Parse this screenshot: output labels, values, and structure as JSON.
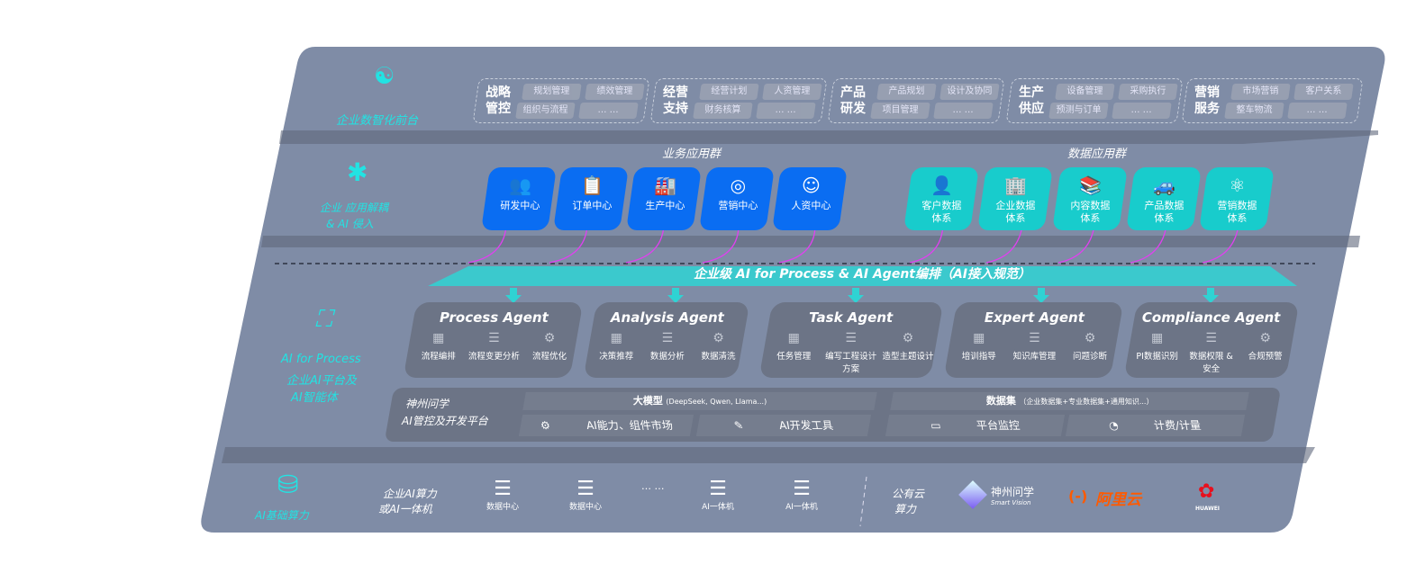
{
  "colors": {
    "panel": "#7f8ca6",
    "band_dark": "#5f687c",
    "agent_box": "#6c7486",
    "business_app": "#0a6df2",
    "data_app": "#18cccc",
    "label_cyan": "#22e3e3",
    "link_arrow": "#e040f0"
  },
  "layers": {
    "front": {
      "label": "企业数智化前台",
      "icon": "brain-icon"
    },
    "apps": {
      "label1": "企业 应用解耦",
      "label2": "& AI 侵入",
      "icon": "molecule-node-icon"
    },
    "ai": {
      "label1": "AI for Process",
      "label2": "企业AI平台及",
      "label3": "AI智能体",
      "icon": "face-scan-icon"
    },
    "infra": {
      "label": "AI基础算力",
      "icon": "database-icon"
    }
  },
  "front_groups": [
    {
      "title": "战略管控",
      "tags": [
        "规划管理",
        "绩效管理",
        "组织与流程",
        "… …"
      ]
    },
    {
      "title": "经营支持",
      "tags": [
        "经营计划",
        "人资管理",
        "财务核算",
        "… …"
      ]
    },
    {
      "title": "产品研发",
      "tags": [
        "产品规划",
        "设计及协同",
        "项目管理",
        "… …"
      ]
    },
    {
      "title": "生产供应",
      "tags": [
        "设备管理",
        "采购执行",
        "预测与订单",
        "… …"
      ]
    },
    {
      "title": "营销服务",
      "tags": [
        "市场营销",
        "客户关系",
        "整车物流",
        "… …"
      ]
    }
  ],
  "business_apps": {
    "title": "业务应用群",
    "items": [
      {
        "label": "研发中心",
        "icon": "team-icon"
      },
      {
        "label": "订单中心",
        "icon": "clipboard-icon"
      },
      {
        "label": "生产中心",
        "icon": "factory-icon"
      },
      {
        "label": "营销中心",
        "icon": "target-icon"
      },
      {
        "label": "人资中心",
        "icon": "person-icon"
      }
    ]
  },
  "data_apps": {
    "title": "数据应用群",
    "items": [
      {
        "label": "客户数据体系",
        "icon": "user-icon"
      },
      {
        "label": "企业数据体系",
        "icon": "building-icon"
      },
      {
        "label": "内容数据体系",
        "icon": "books-icon"
      },
      {
        "label": "产品数据体系",
        "icon": "car-icon"
      },
      {
        "label": "营销数据体系",
        "icon": "atom-icon"
      }
    ]
  },
  "orchestration_banner": "企业级 AI for Process & AI Agent编排（AI接入规范）",
  "agents": [
    {
      "name": "Process Agent",
      "items": [
        "流程编排",
        "流程变更分析",
        "流程优化"
      ]
    },
    {
      "name": "Analysis Agent",
      "items": [
        "决策推荐",
        "数据分析",
        "数据清洗"
      ]
    },
    {
      "name": "Task Agent",
      "items": [
        "任务管理",
        "编写工程设计方案",
        "造型主题设计"
      ]
    },
    {
      "name": "Expert Agent",
      "items": [
        "培训指导",
        "知识库管理",
        "问题诊断"
      ]
    },
    {
      "name": "Compliance Agent",
      "items": [
        "PI数据识别",
        "数据权限 & 安全",
        "合规预警"
      ]
    }
  ],
  "platform": {
    "title1": "神州问学",
    "title2": "AI管控及开发平台",
    "llm": "大模型",
    "llm_note": "(DeepSeek, Qwen, Llama...)",
    "dataset": "数据集",
    "dataset_note": "（企业数据集+专业数据集+通用知识...）",
    "tools": [
      {
        "label": "AI能力、组件市场",
        "icon": "component-market-icon"
      },
      {
        "label": "AI开发工具",
        "icon": "dev-tool-icon"
      },
      {
        "label": "平台监控",
        "icon": "monitor-icon"
      },
      {
        "label": "计费/计量",
        "icon": "gauge-icon"
      }
    ]
  },
  "infra": {
    "enterprise_label1": "企业AI算力",
    "enterprise_label2": "或AI一体机",
    "servers": [
      "数据中心",
      "数据中心",
      "AI一体机",
      "AI一体机"
    ],
    "ellipsis": "… …",
    "public_label1": "公有云",
    "public_label2": "算力",
    "providers": [
      {
        "name": "神州问学",
        "sub": "Smart Vision"
      },
      {
        "name": "阿里云",
        "mark": "(-)"
      },
      {
        "name": "HUAWEI"
      }
    ]
  }
}
